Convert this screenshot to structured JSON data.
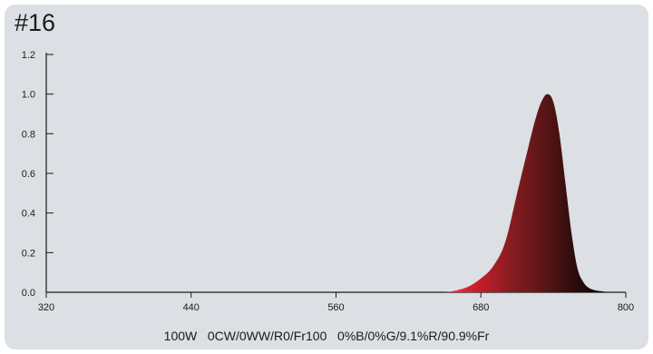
{
  "title": "#16",
  "caption": "100W   0CW/0WW/R0/Fr100   0%B/0%G/9.1%R/90.9%Fr",
  "colors": {
    "background": "#dcdfe3",
    "axis": "#1b1b1b",
    "spectrum_gradient": [
      "#ff2f3f",
      "#c81e2c",
      "#8a1c20",
      "#5c1618",
      "#2c0b0c",
      "#0e0505"
    ]
  },
  "chart_data": {
    "type": "area",
    "title": "#16",
    "xlabel": "",
    "ylabel": "",
    "xlim": [
      320,
      800
    ],
    "ylim": [
      0,
      1.2
    ],
    "xticks": [
      320,
      440,
      560,
      680,
      800
    ],
    "yticks": [
      0.0,
      0.2,
      0.4,
      0.6,
      0.8,
      1.0,
      1.2
    ],
    "xtick_labels": [
      "320",
      "440",
      "560",
      "680",
      "800"
    ],
    "ytick_labels": [
      "0.0",
      "0.2",
      "0.4",
      "0.6",
      "0.8",
      "1.0",
      "1.2"
    ],
    "grid": false,
    "series": [
      {
        "x": [
          650,
          660,
          670,
          680,
          690,
          700,
          710,
          720,
          725,
          730,
          735,
          740,
          745,
          750,
          755,
          760,
          765,
          770,
          775,
          780,
          785
        ],
        "values": [
          0.0,
          0.01,
          0.03,
          0.07,
          0.13,
          0.25,
          0.5,
          0.75,
          0.87,
          0.96,
          1.0,
          0.96,
          0.8,
          0.55,
          0.3,
          0.12,
          0.05,
          0.02,
          0.01,
          0.005,
          0.0
        ]
      }
    ]
  }
}
